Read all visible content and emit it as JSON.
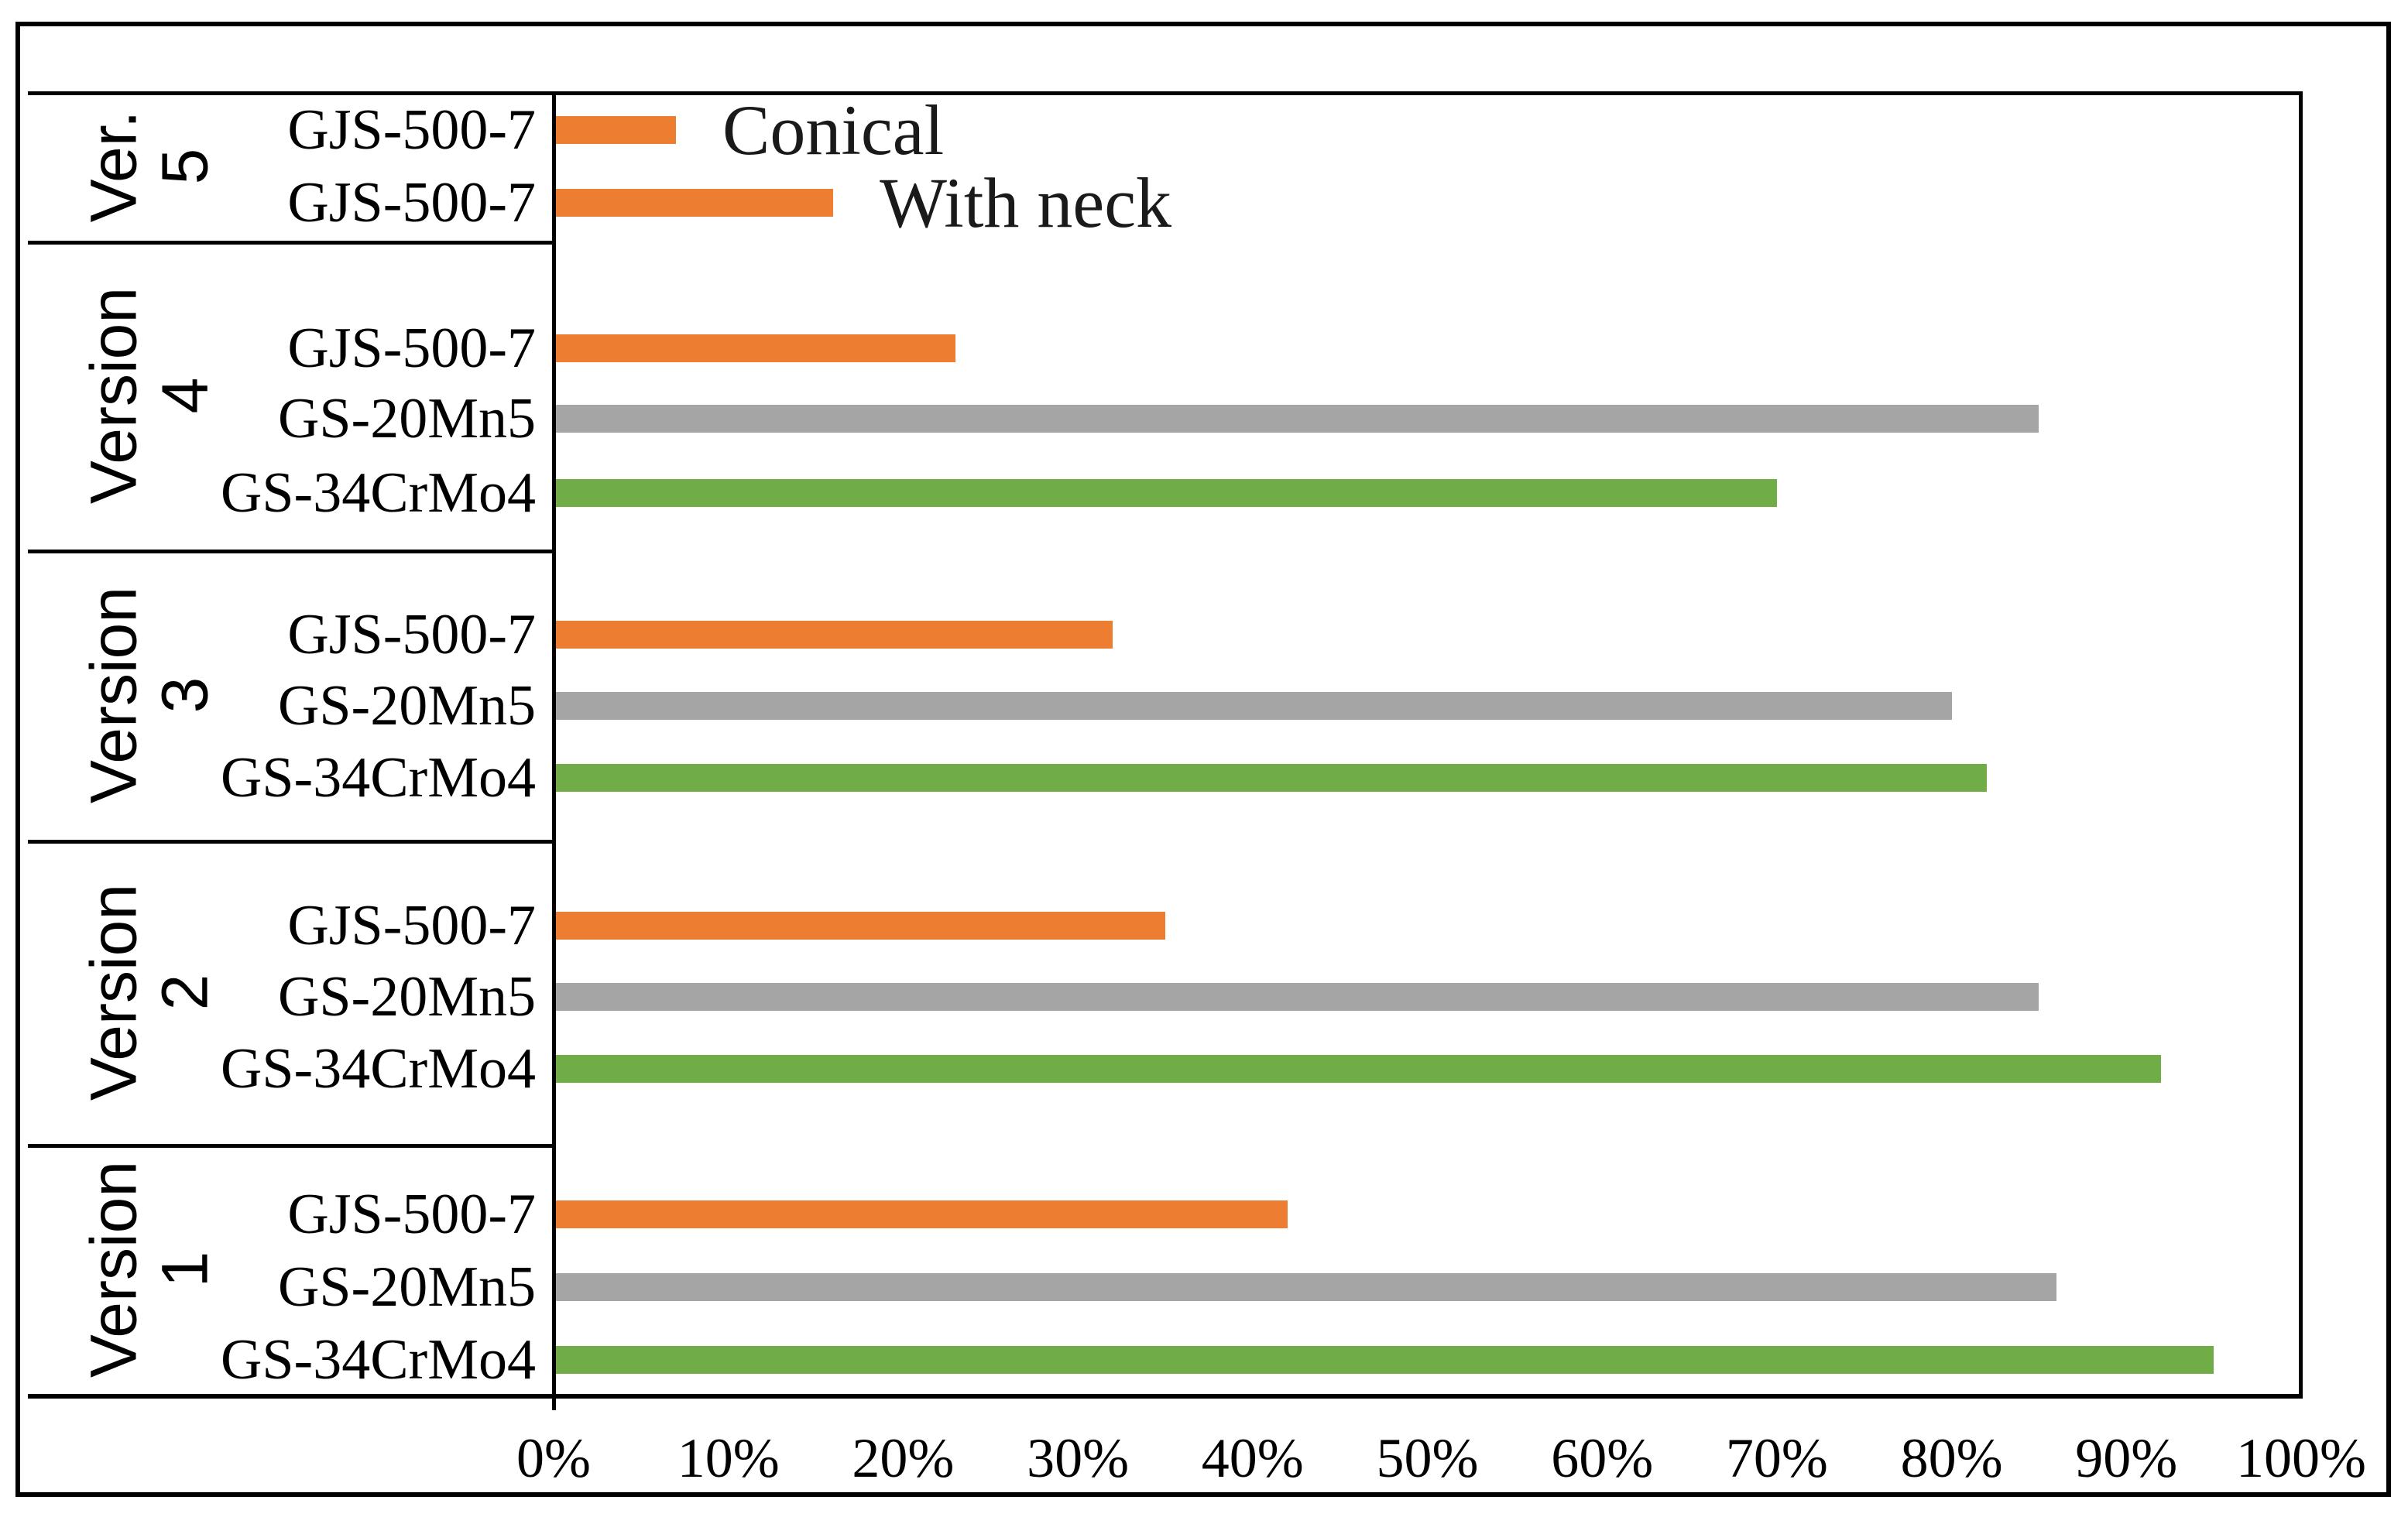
{
  "chart_data": {
    "type": "bar",
    "orientation": "horizontal",
    "title": "",
    "xlabel": "",
    "ylabel": "",
    "xlim": [
      0,
      100
    ],
    "grid": false,
    "x_axis": {
      "unit": "percent",
      "tick_labels": [
        "0%",
        "10%",
        "20%",
        "30%",
        "40%",
        "50%",
        "60%",
        "70%",
        "80%",
        "90%",
        "100%"
      ]
    },
    "series_colors": {
      "GJS-500-7": "#ED7D31",
      "GS-20Mn5": "#A5A5A5",
      "GS-34CrMo4": "#70AD47"
    },
    "groups": [
      {
        "label_lines": [
          "Ver.",
          "5"
        ],
        "label_text": "Ver. 5",
        "bars": [
          {
            "row_label": "GJS-500-7",
            "series": "GJS-500-7",
            "value_pct": 7,
            "annotation": "Conical"
          },
          {
            "row_label": "GJS-500-7",
            "series": "GJS-500-7",
            "value_pct": 16,
            "annotation": "With neck"
          }
        ]
      },
      {
        "label_lines": [
          "Version",
          "4"
        ],
        "label_text": "Version 4",
        "bars": [
          {
            "row_label": "GJS-500-7",
            "series": "GJS-500-7",
            "value_pct": 23
          },
          {
            "row_label": "GS-20Mn5",
            "series": "GS-20Mn5",
            "value_pct": 85
          },
          {
            "row_label": "GS-34CrMo4",
            "series": "GS-34CrMo4",
            "value_pct": 70
          }
        ]
      },
      {
        "label_lines": [
          "Version",
          "3"
        ],
        "label_text": "Version 3",
        "bars": [
          {
            "row_label": "GJS-500-7",
            "series": "GJS-500-7",
            "value_pct": 32
          },
          {
            "row_label": "GS-20Mn5",
            "series": "GS-20Mn5",
            "value_pct": 80
          },
          {
            "row_label": "GS-34CrMo4",
            "series": "GS-34CrMo4",
            "value_pct": 82
          }
        ]
      },
      {
        "label_lines": [
          "Version",
          "2"
        ],
        "label_text": "Version 2",
        "bars": [
          {
            "row_label": "GJS-500-7",
            "series": "GJS-500-7",
            "value_pct": 35
          },
          {
            "row_label": "GS-20Mn5",
            "series": "GS-20Mn5",
            "value_pct": 85
          },
          {
            "row_label": "GS-34CrMo4",
            "series": "GS-34CrMo4",
            "value_pct": 92
          }
        ]
      },
      {
        "label_lines": [
          "Version",
          "1"
        ],
        "label_text": "Version 1",
        "bars": [
          {
            "row_label": "GJS-500-7",
            "series": "GJS-500-7",
            "value_pct": 42
          },
          {
            "row_label": "GS-20Mn5",
            "series": "GS-20Mn5",
            "value_pct": 86
          },
          {
            "row_label": "GS-34CrMo4",
            "series": "GS-34CrMo4",
            "value_pct": 95
          }
        ]
      }
    ]
  }
}
